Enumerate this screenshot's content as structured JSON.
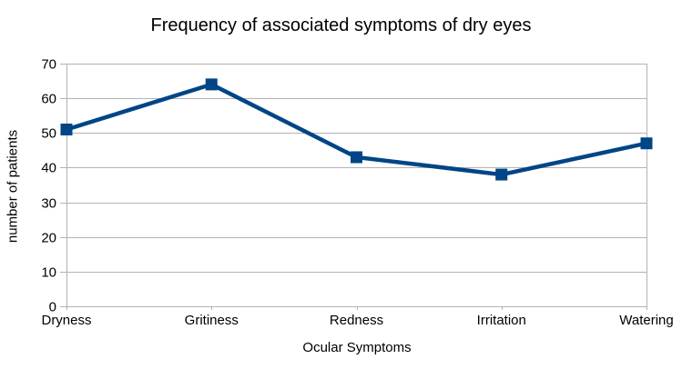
{
  "chart_data": {
    "type": "line",
    "title": "Frequency of associated symptoms of dry eyes",
    "xlabel": "Ocular Symptoms",
    "ylabel": "number of patients",
    "categories": [
      "Dryness",
      "Gritiness",
      "Redness",
      "Irritation",
      "Watering"
    ],
    "values": [
      51,
      64,
      43,
      38,
      47
    ],
    "ylim": [
      0,
      70
    ],
    "yticks": [
      0,
      10,
      20,
      30,
      40,
      50,
      60,
      70
    ],
    "grid": "horizontal",
    "legend": "none",
    "marker": "square",
    "colors": {
      "series": "#004586",
      "gridline": "#b3b3b3",
      "axis": "#b3b3b3",
      "text": "#000000",
      "background": "#ffffff"
    }
  }
}
